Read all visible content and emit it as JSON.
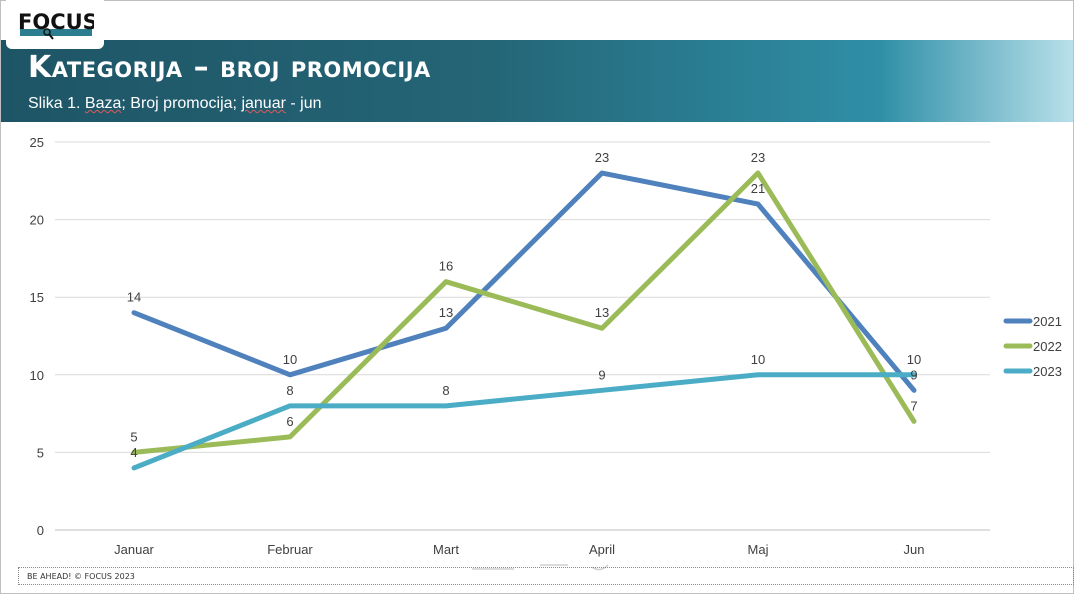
{
  "brand": {
    "logo_text": "FOCUS"
  },
  "header": {
    "title": "Kategorija – broj promocija",
    "subtitle_parts": [
      "Slika 1. ",
      "Baza",
      "; Broj promocija; ",
      "januar",
      " - jun"
    ]
  },
  "footer": {
    "text": "BE AHEAD! © FOCUS 2023"
  },
  "colors": {
    "banner_dark": "#1e5566",
    "banner_light": "#b8e0ea",
    "series_2021": "#4f81bd",
    "series_2022": "#9bbb59",
    "series_2023": "#4bacc6"
  },
  "chart_data": {
    "type": "line",
    "categories": [
      "Januar",
      "Februar",
      "Mart",
      "April",
      "Maj",
      "Jun"
    ],
    "series": [
      {
        "name": "2021",
        "values": [
          14,
          10,
          13,
          23,
          21,
          9
        ],
        "color": "#4f81bd"
      },
      {
        "name": "2022",
        "values": [
          5,
          6,
          16,
          13,
          23,
          7
        ],
        "color": "#9bbb59"
      },
      {
        "name": "2023",
        "values": [
          4,
          8,
          8,
          9,
          10,
          10
        ],
        "color": "#4bacc6"
      }
    ],
    "ylim": [
      0,
      25
    ],
    "yticks": [
      0,
      5,
      10,
      15,
      20,
      25
    ],
    "grid": true,
    "legend": "right",
    "data_labels": true,
    "title": "",
    "xlabel": "",
    "ylabel": ""
  }
}
